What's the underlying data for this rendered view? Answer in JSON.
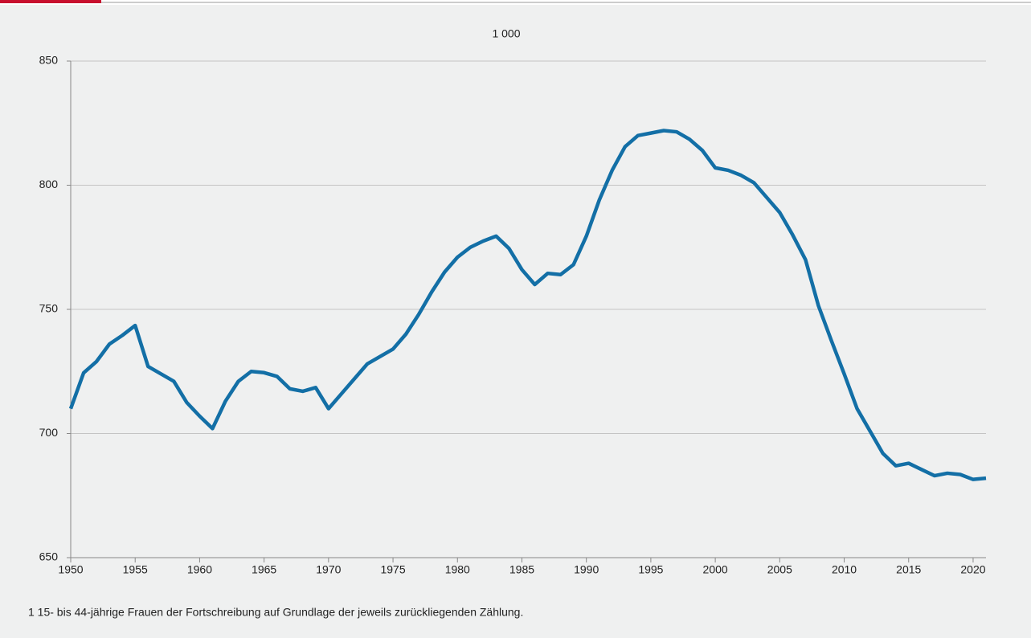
{
  "chart_data": {
    "type": "line",
    "unit_label": "1 000",
    "footnote": "1  15- bis 44-jährige Frauen der Fortschreibung auf Grundlage der jeweils zurückliegenden Zählung.",
    "x": [
      1950,
      1951,
      1952,
      1953,
      1954,
      1955,
      1956,
      1957,
      1958,
      1959,
      1960,
      1961,
      1962,
      1963,
      1964,
      1965,
      1966,
      1967,
      1968,
      1969,
      1970,
      1971,
      1972,
      1973,
      1974,
      1975,
      1976,
      1977,
      1978,
      1979,
      1980,
      1981,
      1982,
      1983,
      1984,
      1985,
      1986,
      1987,
      1988,
      1989,
      1990,
      1991,
      1992,
      1993,
      1994,
      1995,
      1996,
      1997,
      1998,
      1999,
      2000,
      2001,
      2002,
      2003,
      2004,
      2005,
      2006,
      2007,
      2008,
      2009,
      2010,
      2011,
      2012,
      2013,
      2014,
      2015,
      2016,
      2017,
      2018,
      2019,
      2020,
      2021
    ],
    "series": [
      {
        "color": "#136fa6",
        "values": [
          710,
          724.4,
          729,
          736,
          739.5,
          743.5,
          727,
          724,
          721,
          712.5,
          707,
          702,
          713,
          721,
          725,
          724.5,
          723,
          718,
          717,
          718.5,
          710,
          716,
          722,
          728,
          731,
          734,
          740,
          748,
          757,
          765,
          771,
          775,
          777.5,
          779.5,
          774.5,
          766,
          760,
          764.5,
          764,
          768,
          779.5,
          794,
          806,
          815.5,
          820,
          821,
          822,
          821.5,
          818.5,
          814,
          807,
          806,
          804,
          801,
          795,
          789,
          780,
          770,
          751.5,
          737.5,
          724,
          710,
          701,
          692,
          687,
          688,
          685.5,
          683,
          684,
          683.5,
          681.5,
          682
        ]
      }
    ],
    "xlim": [
      1950,
      2021
    ],
    "xticks": [
      1950,
      1955,
      1960,
      1965,
      1970,
      1975,
      1980,
      1985,
      1990,
      1995,
      2000,
      2005,
      2010,
      2015,
      2020
    ],
    "ylim": [
      650,
      850
    ],
    "yticks": [
      650,
      700,
      750,
      800,
      850
    ],
    "grid": true
  }
}
